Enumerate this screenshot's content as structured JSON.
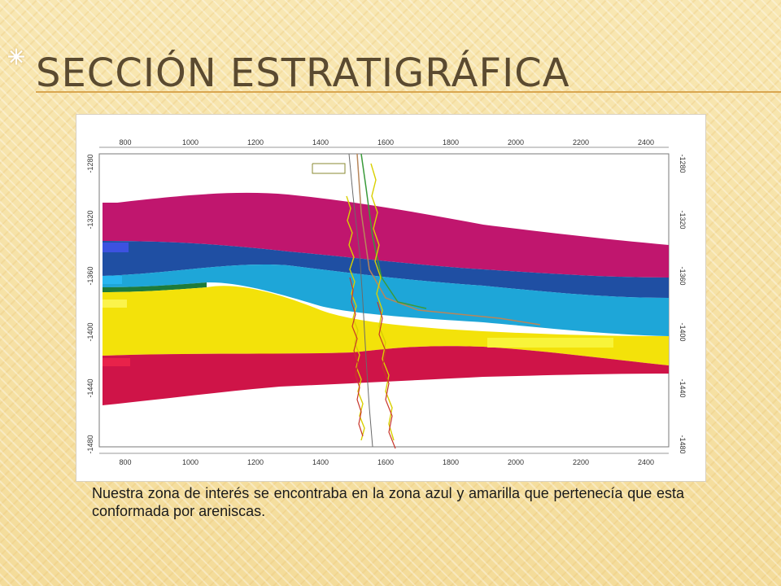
{
  "slide": {
    "title": "Sección estratigráfica",
    "caption": "Nuestra zona de interés se encontraba en la zona azul y amarilla que pertenecía que esta conformada por areniscas."
  },
  "figure": {
    "top_axis_ticks": [
      "800",
      "1000",
      "1200",
      "1400",
      "1600",
      "1800",
      "2000",
      "2200",
      "2400"
    ],
    "bottom_axis_ticks": [
      "800",
      "1000",
      "1200",
      "1400",
      "1600",
      "1800",
      "2000",
      "2200",
      "2400"
    ],
    "left_axis_ticks": [
      "-1280",
      "-1320",
      "-1360",
      "-1400",
      "-1440",
      "-1480"
    ],
    "right_axis_ticks": [
      "-1280",
      "-1320",
      "-1360",
      "-1400",
      "-1440",
      "-1480"
    ],
    "colors": {
      "magenta": "#c0166e",
      "dark_blue": "#1f4fa3",
      "cyan": "#1ea6d8",
      "green": "#1d7a3a",
      "yellow": "#f3e20a",
      "red": "#cf1448",
      "well_log_yellow": "#d9d000",
      "well_log_red": "#c8362a",
      "well_log_green": "#3a9a3a",
      "well_path_brown": "#b8865a"
    }
  }
}
